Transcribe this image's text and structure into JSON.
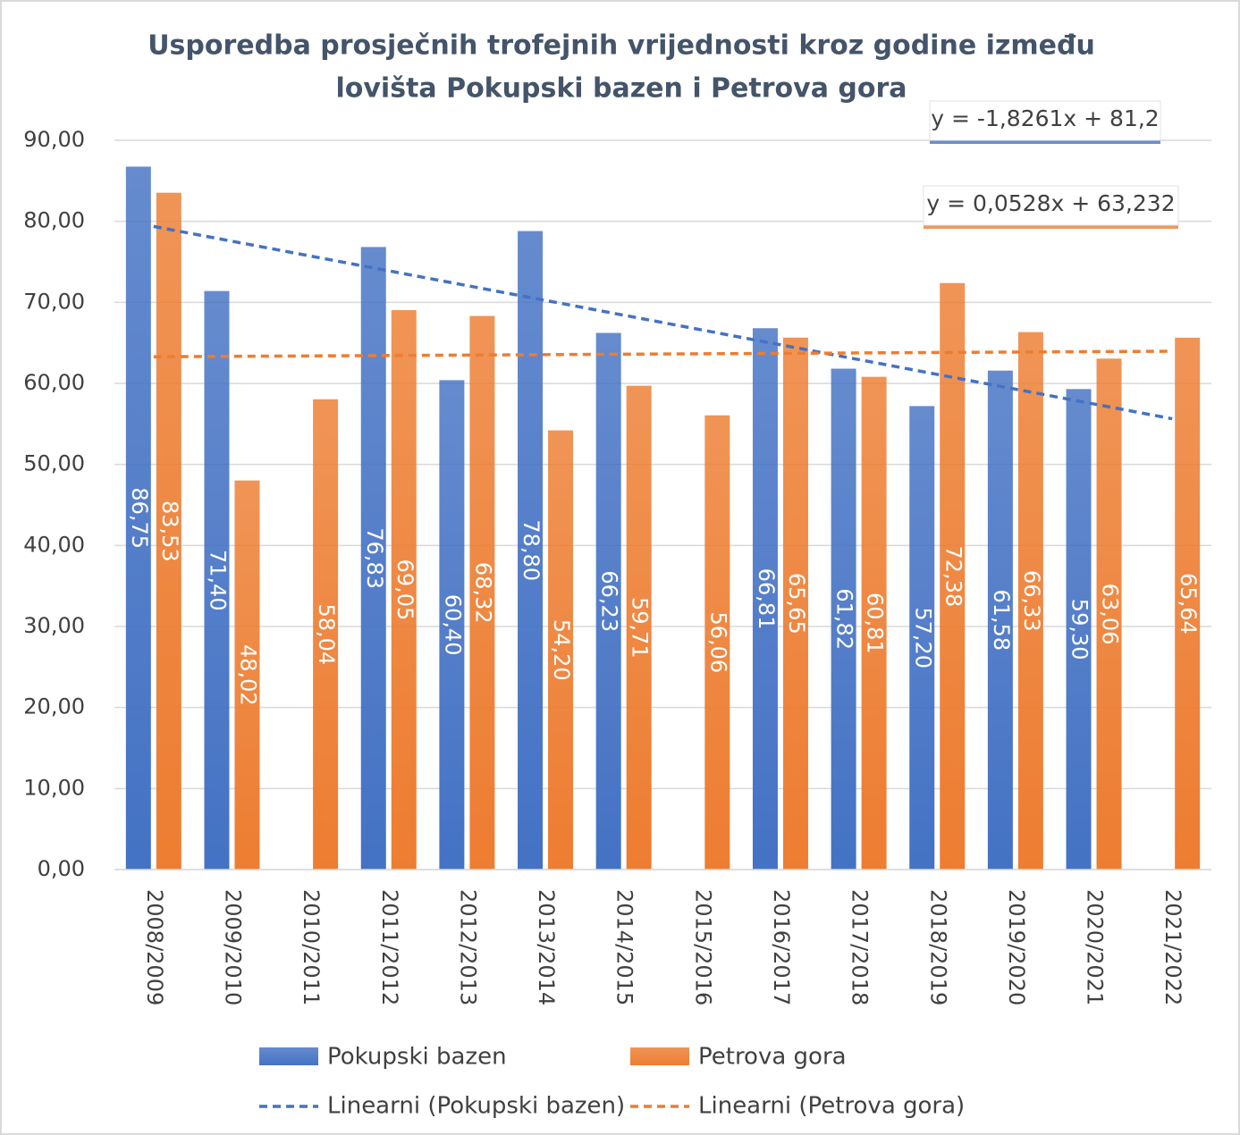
{
  "chart_data": {
    "type": "bar",
    "title": [
      "Usporedba prosječnih trofejnih vrijednosti kroz godine između",
      "lovišta Pokupski bazen i Petrova gora"
    ],
    "categories": [
      "2008/2009",
      "2009/2010",
      "2010/2011",
      "2011/2012",
      "2012/2013",
      "2013/2014",
      "2014/2015",
      "2015/2016",
      "2016/2017",
      "2017/2018",
      "2018/2019",
      "2019/2020",
      "2020/2021",
      "2021/2022"
    ],
    "series": [
      {
        "name": "Pokupski bazen",
        "color": "#4472c4",
        "values": [
          86.75,
          71.4,
          null,
          76.83,
          60.4,
          78.8,
          66.23,
          null,
          66.81,
          61.82,
          57.2,
          61.58,
          59.3,
          null
        ],
        "value_labels": [
          "86,75",
          "71,40",
          null,
          "76,83",
          "60,40",
          "78,80",
          "66,23",
          null,
          "66,81",
          "61,82",
          "57,20",
          "61,58",
          "59,30",
          null
        ],
        "trendline": {
          "name": "Linearni (Pokupski bazen)",
          "slope": -1.8261,
          "intercept": 81.2,
          "label": "y = -1,8261x + 81,2"
        }
      },
      {
        "name": "Petrova gora",
        "color": "#ed7d31",
        "values": [
          83.53,
          48.02,
          58.04,
          69.05,
          68.32,
          54.2,
          59.71,
          56.06,
          65.65,
          60.81,
          72.38,
          66.33,
          63.06,
          65.64
        ],
        "value_labels": [
          "83,53",
          "48,02",
          "58,04",
          "69,05",
          "68,32",
          "54,20",
          "59,71",
          "56,06",
          "65,65",
          "60,81",
          "72,38",
          "66,33",
          "63,06",
          "65,64"
        ],
        "trendline": {
          "name": "Linearni (Petrova gora)",
          "slope": 0.0528,
          "intercept": 63.232,
          "label": "y = 0,0528x + 63,232"
        }
      }
    ],
    "ylim": [
      0,
      90
    ],
    "yticks": [
      {
        "value": 0,
        "label": "0,00"
      },
      {
        "value": 10,
        "label": "10,00"
      },
      {
        "value": 20,
        "label": "20,00"
      },
      {
        "value": 30,
        "label": "30,00"
      },
      {
        "value": 40,
        "label": "40,00"
      },
      {
        "value": 50,
        "label": "50,00"
      },
      {
        "value": 60,
        "label": "60,00"
      },
      {
        "value": 70,
        "label": "70,00"
      },
      {
        "value": 80,
        "label": "80,00"
      },
      {
        "value": 90,
        "label": "90,00"
      }
    ],
    "grid": true,
    "legend": "bottom"
  }
}
